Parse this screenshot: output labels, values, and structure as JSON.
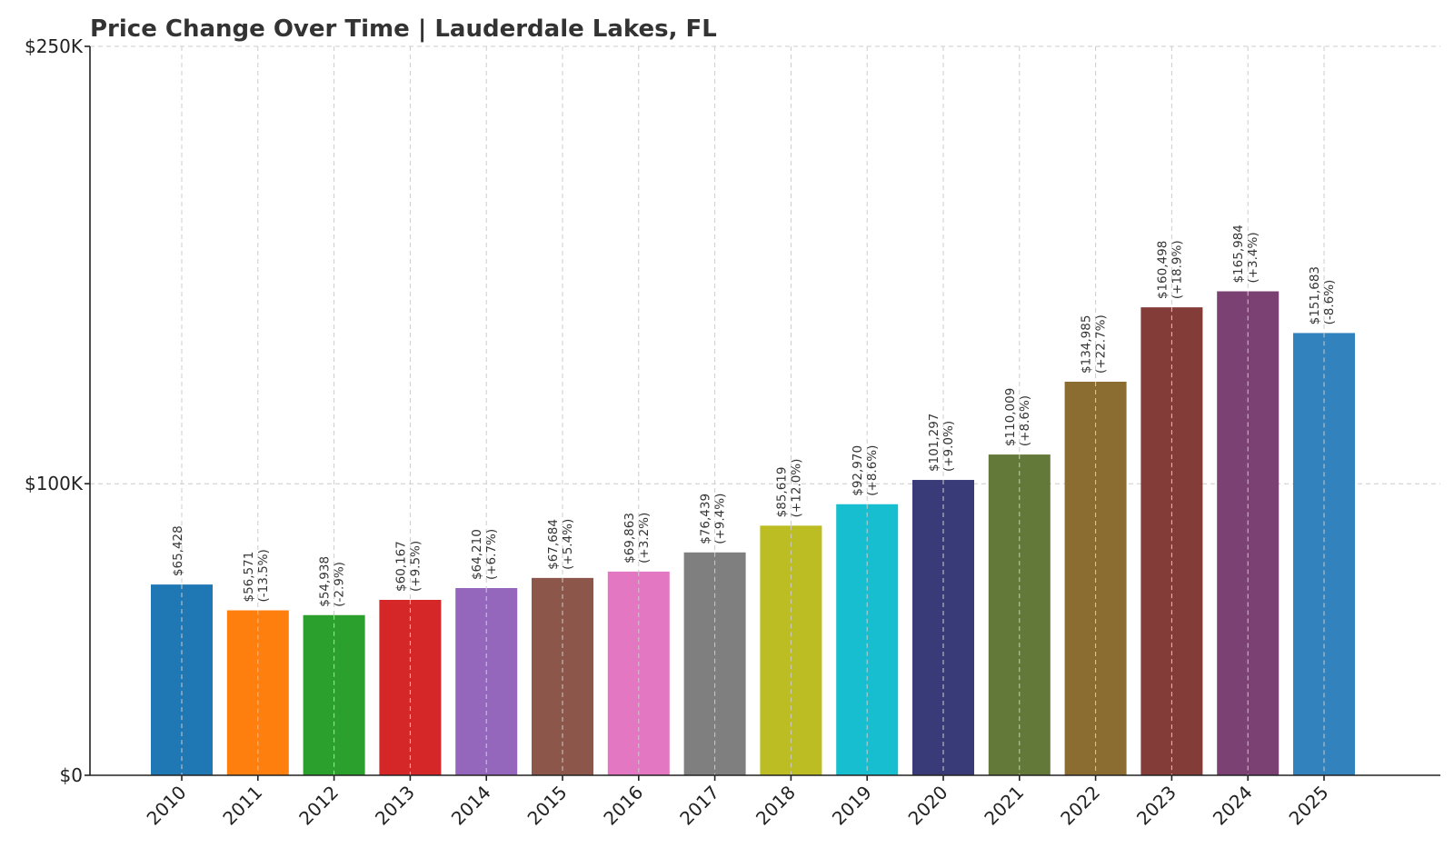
{
  "chart_data": {
    "type": "bar",
    "title": "Price Change Over Time | Lauderdale Lakes, FL",
    "xlabel": "",
    "ylabel": "",
    "ylim": [
      0,
      250000
    ],
    "yticks": [
      {
        "value": 0,
        "label": "$0"
      },
      {
        "value": 100000,
        "label": "$100K"
      },
      {
        "value": 250000,
        "label": "$250K"
      }
    ],
    "grid": true,
    "categories": [
      "2010",
      "2011",
      "2012",
      "2013",
      "2014",
      "2015",
      "2016",
      "2017",
      "2018",
      "2019",
      "2020",
      "2021",
      "2022",
      "2023",
      "2024",
      "2025"
    ],
    "values": [
      65428,
      56571,
      54938,
      60167,
      64210,
      67684,
      69863,
      76439,
      85619,
      92970,
      101297,
      110009,
      134985,
      160498,
      165984,
      151683
    ],
    "value_labels": [
      "$65,428",
      "$56,571",
      "$54,938",
      "$60,167",
      "$64,210",
      "$67,684",
      "$69,863",
      "$76,439",
      "$85,619",
      "$92,970",
      "$101,297",
      "$110,009",
      "$134,985",
      "$160,498",
      "$165,984",
      "$151,683"
    ],
    "change_labels": [
      "",
      "(-13.5%)",
      "(-2.9%)",
      "(+9.5%)",
      "(+6.7%)",
      "(+5.4%)",
      "(+3.2%)",
      "(+9.4%)",
      "(+12.0%)",
      "(+8.6%)",
      "(+9.0%)",
      "(+8.6%)",
      "(+22.7%)",
      "(+18.9%)",
      "(+3.4%)",
      "(-8.6%)"
    ],
    "colors": [
      "#1f77b4",
      "#ff7f0e",
      "#2ca02c",
      "#d62728",
      "#9467bd",
      "#8c564b",
      "#e377c2",
      "#7f7f7f",
      "#bcbd22",
      "#17becf",
      "#393b79",
      "#637939",
      "#8c6d31",
      "#843c39",
      "#7b4173",
      "#3182bd"
    ]
  }
}
